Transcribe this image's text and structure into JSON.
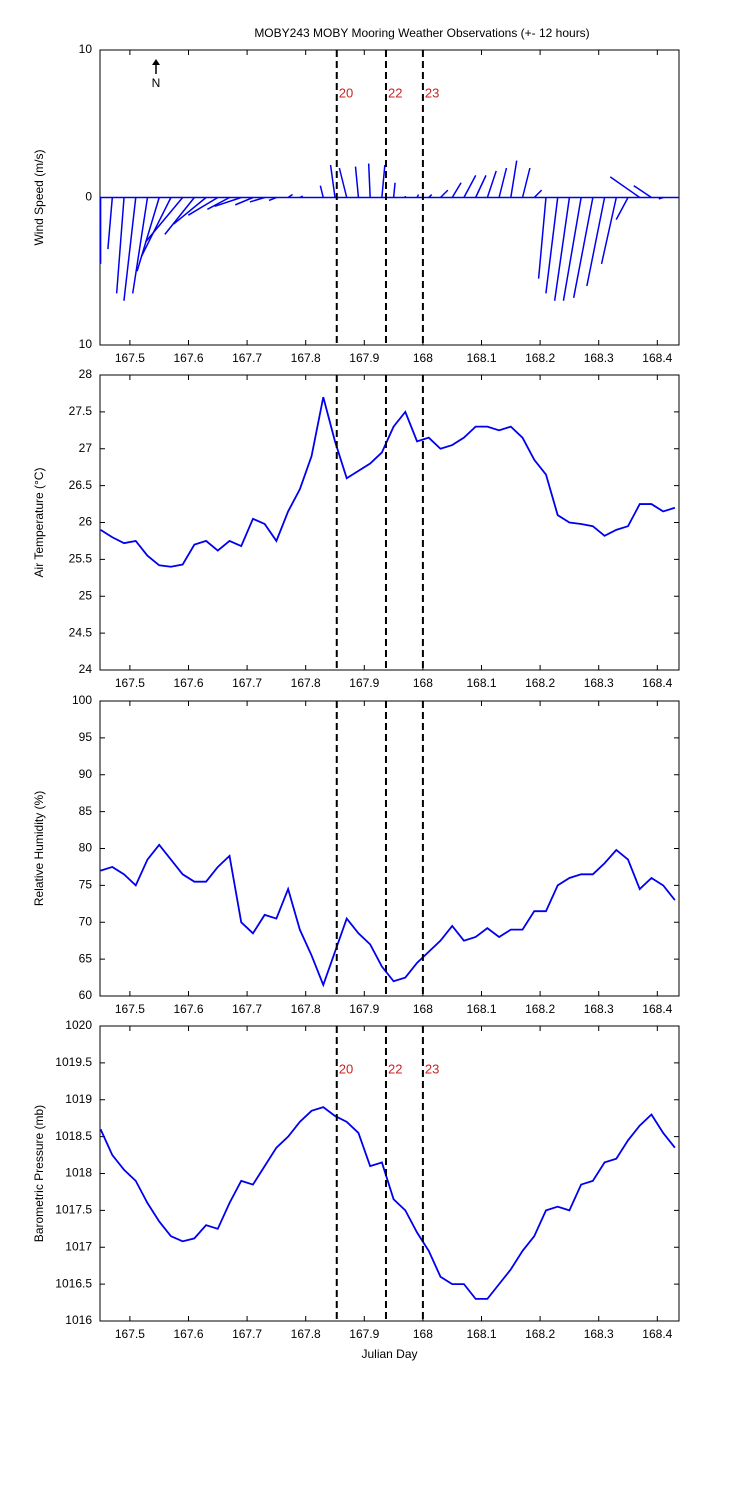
{
  "chart_data": [
    {
      "type": "stick",
      "title": "MOBY243 MOBY Mooring Weather Observations (+- 12 hours)",
      "ylabel": "Wind Speed (m/s)",
      "north_label": "N",
      "color": "#0000ee",
      "xlim": [
        167.449,
        168.437
      ],
      "ylim": [
        -10,
        10
      ],
      "xticks": [
        167.5,
        167.6,
        167.7,
        167.8,
        167.9,
        168,
        168.1,
        168.2,
        168.3,
        168.4
      ],
      "yticks": [
        {
          "value": -10,
          "label": "10"
        },
        0,
        10
      ],
      "vlines": [
        167.853,
        167.937,
        168.0
      ],
      "vline_labels": [
        "20",
        "22",
        "23"
      ],
      "x": [
        167.45,
        167.47,
        167.49,
        167.51,
        167.53,
        167.55,
        167.57,
        167.59,
        167.61,
        167.63,
        167.65,
        167.67,
        167.69,
        167.71,
        167.73,
        167.75,
        167.77,
        167.79,
        167.81,
        167.83,
        167.85,
        167.87,
        167.89,
        167.91,
        167.93,
        167.95,
        167.97,
        167.99,
        168.01,
        168.03,
        168.05,
        168.07,
        168.09,
        168.11,
        168.13,
        168.15,
        168.17,
        168.19,
        168.21,
        168.23,
        168.25,
        168.27,
        168.29,
        168.31,
        168.33,
        168.35,
        168.37,
        168.39,
        168.41,
        168.43
      ],
      "u": [
        0,
        -0.3,
        -0.5,
        -0.8,
        -1.0,
        -1.5,
        -2.0,
        -2.5,
        -2.0,
        -2.2,
        -2.0,
        -1.5,
        -1.8,
        -1.2,
        -1.0,
        -0.5,
        0.3,
        0.2,
        0,
        -0.2,
        -0.3,
        -0.5,
        -0.2,
        -0.1,
        0.2,
        0.1,
        0,
        0.1,
        0.2,
        0.5,
        0.6,
        0.8,
        0.7,
        0.6,
        0.5,
        0.4,
        0.5,
        0.5,
        -0.5,
        -0.8,
        -1.0,
        -1.2,
        -1.3,
        -1.2,
        -1.0,
        -0.8,
        -2.0,
        -1.2,
        -0.3,
        0
      ],
      "v": [
        -4.5,
        -3.5,
        -6.5,
        -7,
        -6.5,
        -5,
        -4,
        -3,
        -2.5,
        -1.8,
        -1.2,
        -0.8,
        -0.6,
        -0.5,
        -0.3,
        -0.2,
        0.2,
        0.1,
        0,
        0.8,
        2.2,
        2.0,
        2.1,
        2.3,
        2.2,
        1.0,
        0.1,
        0.2,
        0.2,
        0.5,
        1.0,
        1.5,
        1.5,
        1.8,
        2.0,
        2.5,
        2.0,
        0.5,
        -5.5,
        -6.5,
        -7.0,
        -7.0,
        -6.8,
        -6.0,
        -4.5,
        -1.5,
        1.4,
        0.8,
        -0.1,
        0
      ]
    },
    {
      "type": "line",
      "ylabel": "Air Temperature (°C)",
      "color": "#0000ee",
      "xlim": [
        167.449,
        168.437
      ],
      "ylim": [
        24,
        28
      ],
      "xticks": [
        167.5,
        167.6,
        167.7,
        167.8,
        167.9,
        168,
        168.1,
        168.2,
        168.3,
        168.4
      ],
      "yticks": [
        24,
        24.5,
        25,
        25.5,
        26,
        26.5,
        27,
        27.5,
        28
      ],
      "vlines": [
        167.853,
        167.937,
        168.0
      ],
      "x": [
        167.45,
        167.47,
        167.49,
        167.51,
        167.53,
        167.55,
        167.57,
        167.59,
        167.61,
        167.63,
        167.65,
        167.67,
        167.69,
        167.71,
        167.73,
        167.75,
        167.77,
        167.79,
        167.81,
        167.83,
        167.85,
        167.87,
        167.89,
        167.91,
        167.93,
        167.95,
        167.97,
        167.99,
        168.01,
        168.03,
        168.05,
        168.07,
        168.09,
        168.11,
        168.13,
        168.15,
        168.17,
        168.19,
        168.21,
        168.23,
        168.25,
        168.27,
        168.29,
        168.31,
        168.33,
        168.35,
        168.37,
        168.39,
        168.41,
        168.43
      ],
      "values": [
        25.9,
        25.8,
        25.72,
        25.75,
        25.55,
        25.42,
        25.4,
        25.43,
        25.7,
        25.75,
        25.62,
        25.75,
        25.68,
        26.05,
        25.98,
        25.75,
        26.15,
        26.45,
        26.9,
        27.7,
        27.1,
        26.6,
        26.7,
        26.8,
        26.95,
        27.3,
        27.5,
        27.1,
        27.15,
        27.0,
        27.05,
        27.15,
        27.3,
        27.3,
        27.25,
        27.3,
        27.15,
        26.85,
        26.65,
        26.1,
        26.0,
        25.98,
        25.95,
        25.82,
        25.9,
        25.95,
        26.25,
        26.25,
        26.15,
        26.2
      ]
    },
    {
      "type": "line",
      "ylabel": "Relative Humidity (%)",
      "color": "#0000ee",
      "xlim": [
        167.449,
        168.437
      ],
      "ylim": [
        60,
        100
      ],
      "xticks": [
        167.5,
        167.6,
        167.7,
        167.8,
        167.9,
        168,
        168.1,
        168.2,
        168.3,
        168.4
      ],
      "yticks": [
        60,
        65,
        70,
        75,
        80,
        85,
        90,
        95,
        100
      ],
      "vlines": [
        167.853,
        167.937,
        168.0
      ],
      "x": [
        167.45,
        167.47,
        167.49,
        167.51,
        167.53,
        167.55,
        167.57,
        167.59,
        167.61,
        167.63,
        167.65,
        167.67,
        167.69,
        167.71,
        167.73,
        167.75,
        167.77,
        167.79,
        167.81,
        167.83,
        167.85,
        167.87,
        167.89,
        167.91,
        167.93,
        167.95,
        167.97,
        167.99,
        168.01,
        168.03,
        168.05,
        168.07,
        168.09,
        168.11,
        168.13,
        168.15,
        168.17,
        168.19,
        168.21,
        168.23,
        168.25,
        168.27,
        168.29,
        168.31,
        168.33,
        168.35,
        168.37,
        168.39,
        168.41,
        168.43
      ],
      "values": [
        77,
        77.5,
        76.5,
        75,
        78.5,
        80.5,
        78.5,
        76.5,
        75.5,
        75.5,
        77.5,
        79,
        70,
        68.5,
        71,
        70.5,
        74.5,
        69,
        65.5,
        61.5,
        66,
        70.5,
        68.5,
        67,
        64,
        62,
        62.5,
        64.5,
        66,
        67.5,
        69.5,
        67.5,
        68,
        69.2,
        68,
        69,
        69,
        71.5,
        71.5,
        75,
        76,
        76.5,
        76.5,
        78,
        79.8,
        78.5,
        74.5,
        76,
        75,
        73
      ]
    },
    {
      "type": "line",
      "ylabel": "Barometric Pressure (mb)",
      "xlabel": "Julian Day",
      "color": "#0000ee",
      "xlim": [
        167.449,
        168.437
      ],
      "ylim": [
        1016,
        1020
      ],
      "xticks": [
        167.5,
        167.6,
        167.7,
        167.8,
        167.9,
        168,
        168.1,
        168.2,
        168.3,
        168.4
      ],
      "yticks": [
        1016,
        1016.5,
        1017,
        1017.5,
        1018,
        1018.5,
        1019,
        1019.5,
        1020
      ],
      "vlines": [
        167.853,
        167.937,
        168.0
      ],
      "vline_labels": [
        "20",
        "22",
        "23"
      ],
      "x": [
        167.45,
        167.47,
        167.49,
        167.51,
        167.53,
        167.55,
        167.57,
        167.59,
        167.61,
        167.63,
        167.65,
        167.67,
        167.69,
        167.71,
        167.73,
        167.75,
        167.77,
        167.79,
        167.81,
        167.83,
        167.85,
        167.87,
        167.89,
        167.91,
        167.93,
        167.95,
        167.97,
        167.99,
        168.01,
        168.03,
        168.05,
        168.07,
        168.09,
        168.11,
        168.13,
        168.15,
        168.17,
        168.19,
        168.21,
        168.23,
        168.25,
        168.27,
        168.29,
        168.31,
        168.33,
        168.35,
        168.37,
        168.39,
        168.41,
        168.43
      ],
      "values": [
        1018.6,
        1018.25,
        1018.05,
        1017.9,
        1017.6,
        1017.35,
        1017.15,
        1017.08,
        1017.12,
        1017.3,
        1017.25,
        1017.6,
        1017.9,
        1017.85,
        1018.1,
        1018.35,
        1018.5,
        1018.7,
        1018.85,
        1018.9,
        1018.78,
        1018.7,
        1018.55,
        1018.1,
        1018.15,
        1017.65,
        1017.5,
        1017.2,
        1016.95,
        1016.6,
        1016.5,
        1016.5,
        1016.3,
        1016.3,
        1016.5,
        1016.7,
        1016.95,
        1017.15,
        1017.5,
        1017.55,
        1017.5,
        1017.85,
        1017.9,
        1018.15,
        1018.2,
        1018.45,
        1018.65,
        1018.8,
        1018.55,
        1018.35
      ]
    }
  ]
}
